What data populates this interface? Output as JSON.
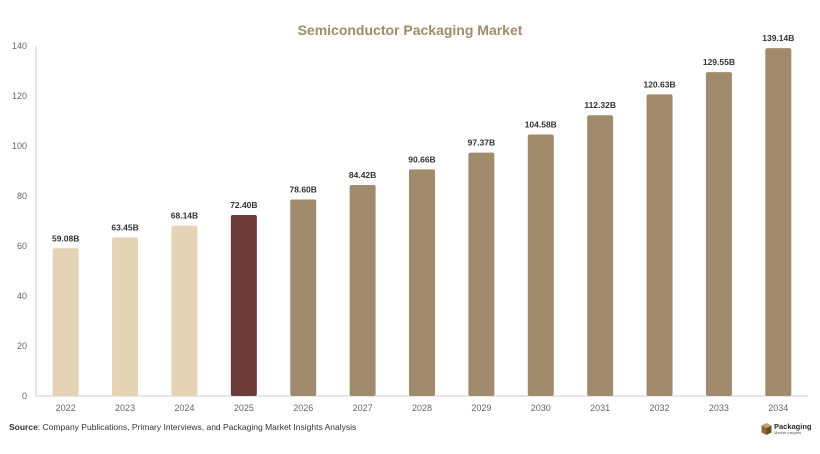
{
  "chart_data": {
    "type": "bar",
    "title": "Semiconductor Packaging Market",
    "categories": [
      "2022",
      "2023",
      "2024",
      "2025",
      "2026",
      "2027",
      "2028",
      "2029",
      "2030",
      "2031",
      "2032",
      "2033",
      "2034"
    ],
    "values": [
      59.08,
      63.45,
      68.14,
      72.4,
      78.6,
      84.42,
      90.66,
      97.37,
      104.58,
      112.32,
      120.63,
      129.55,
      139.14
    ],
    "data_labels": [
      "59.08B",
      "63.45B",
      "68.14B",
      "72.40B",
      "78.60B",
      "84.42B",
      "90.66B",
      "97.37B",
      "104.58B",
      "112.32B",
      "120.63B",
      "129.55B",
      "139.14B"
    ],
    "bar_colors": [
      "#e5d3b5",
      "#e5d3b5",
      "#e5d3b5",
      "#6e3b3b",
      "#a08c6c",
      "#a08c6c",
      "#a08c6c",
      "#a08c6c",
      "#a08c6c",
      "#a08c6c",
      "#a08c6c",
      "#a08c6c",
      "#a08c6c"
    ],
    "y_ticks": [
      "0",
      "20",
      "40",
      "60",
      "80",
      "100",
      "120",
      "140"
    ],
    "ylim": [
      0,
      140
    ],
    "xlabel": "",
    "ylabel": "",
    "grid": false,
    "legend": "none",
    "title_color": "#a08c6c"
  },
  "source": {
    "label": "Source",
    "text": ": Company Publications, Primary Interviews, and Packaging Market Insights Analysis"
  },
  "logo": {
    "name": "Packaging",
    "tagline": "Market Insights",
    "icon": "package-box-icon"
  }
}
